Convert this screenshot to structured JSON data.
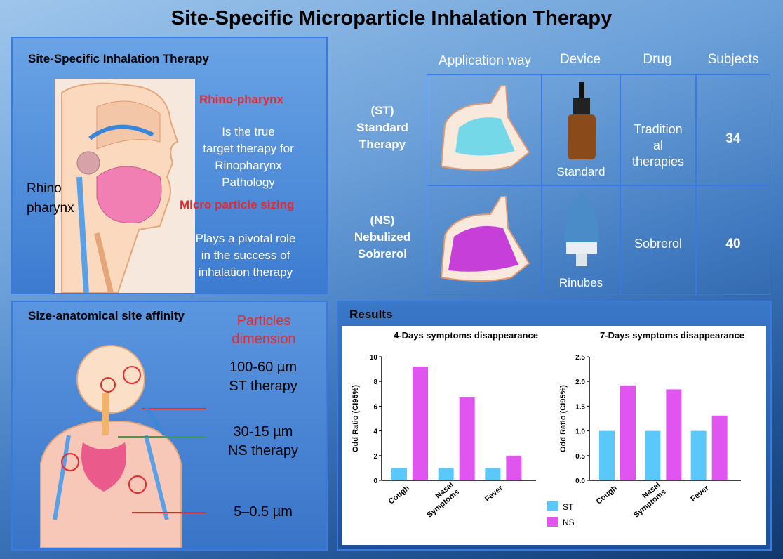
{
  "title": "Site-Specific Microparticle Inhalation Therapy",
  "panel1": {
    "heading": "Site-Specific Inhalation Therapy",
    "label_rhino": "Rhino",
    "label_pharynx": "pharynx",
    "rhino_heading": "Rhino-pharynx",
    "rhino_text": [
      "Is the true",
      "target therapy for",
      "Rinopharynx",
      "Pathology"
    ],
    "micro_heading": "Micro particle sizing",
    "micro_text": [
      "Plays a pivotal role",
      "in the success of",
      "inhalation therapy"
    ]
  },
  "table": {
    "headers": [
      "Application way",
      "Device",
      "Drug",
      "Subjects"
    ],
    "rows": [
      {
        "label": [
          "(ST)",
          "Standard",
          "Therapy"
        ],
        "device": "Standard",
        "drug": [
          "Tradition",
          "al",
          "therapies"
        ],
        "subjects": "34"
      },
      {
        "label": [
          "(NS)",
          "Nebulized",
          "Sobrerol"
        ],
        "device": "Rinubes",
        "drug": [
          "Sobrerol"
        ],
        "subjects": "40"
      }
    ]
  },
  "panel3": {
    "heading": "Size-anatomical site affinity",
    "particles": [
      "Particles",
      "dimension"
    ],
    "size1": [
      "100-60 µm",
      "ST therapy"
    ],
    "size2": [
      "30-15 µm",
      "NS therapy"
    ],
    "size3": "5–0.5 µm"
  },
  "results": {
    "heading": "Results"
  },
  "colors": {
    "st": "#5ac8fa",
    "ns": "#e055f0",
    "red": "#e8282c"
  },
  "chart_data": [
    {
      "type": "bar",
      "title": "4-Days symptoms disappearance",
      "ylabel": "Odd Ratio (CI95%)",
      "categories": [
        "Cough",
        "Nasal Symptoms",
        "Fever"
      ],
      "series": [
        {
          "name": "ST",
          "values": [
            1,
            1,
            1
          ]
        },
        {
          "name": "NS",
          "values": [
            9.2,
            6.7,
            2.0
          ]
        }
      ],
      "ylim": [
        0,
        10
      ],
      "yticks": [
        "0",
        "2",
        "4",
        "6",
        "8",
        "10"
      ]
    },
    {
      "type": "bar",
      "title": "7-Days symptoms disappearance",
      "ylabel": "Odd Ratio (CI95%)",
      "categories": [
        "Cough",
        "Nasal Symptoms",
        "Fever"
      ],
      "series": [
        {
          "name": "ST",
          "values": [
            1.0,
            1.0,
            1.0
          ]
        },
        {
          "name": "NS",
          "values": [
            1.92,
            1.84,
            1.31
          ]
        }
      ],
      "ylim": [
        0,
        2.5
      ],
      "yticks": [
        "0.0",
        "0.5",
        "1.0",
        "1.5",
        "2.0",
        "2.5"
      ]
    }
  ],
  "legend": [
    "ST",
    "NS"
  ]
}
